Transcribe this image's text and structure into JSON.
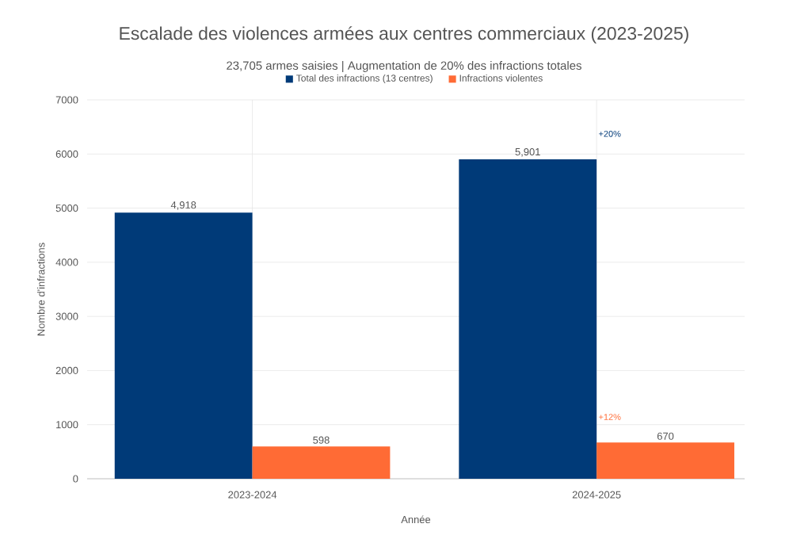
{
  "chart_data": {
    "type": "bar",
    "title": "Escalade des violences armées aux centres commerciaux (2023-2025)",
    "subtitle": "23,705 armes saisies | Augmentation de 20% des infractions totales",
    "xlabel": "Année",
    "ylabel": "Nombre d'infractions",
    "categories": [
      "2023-2024",
      "2024-2025"
    ],
    "series": [
      {
        "name": "Total des infractions (13 centres)",
        "color": "#003a78",
        "values": [
          4918,
          5901
        ],
        "value_labels": [
          "4,918",
          "5,901"
        ]
      },
      {
        "name": "Infractions violentes",
        "color": "#ff6b35",
        "values": [
          598,
          670
        ],
        "value_labels": [
          "598",
          "670"
        ]
      }
    ],
    "annotations": [
      "+20%",
      "+12%"
    ],
    "ylim": [
      0,
      7000
    ],
    "yticks": [
      0,
      1000,
      2000,
      3000,
      4000,
      5000,
      6000,
      7000
    ],
    "grid": true,
    "legend": "top"
  }
}
